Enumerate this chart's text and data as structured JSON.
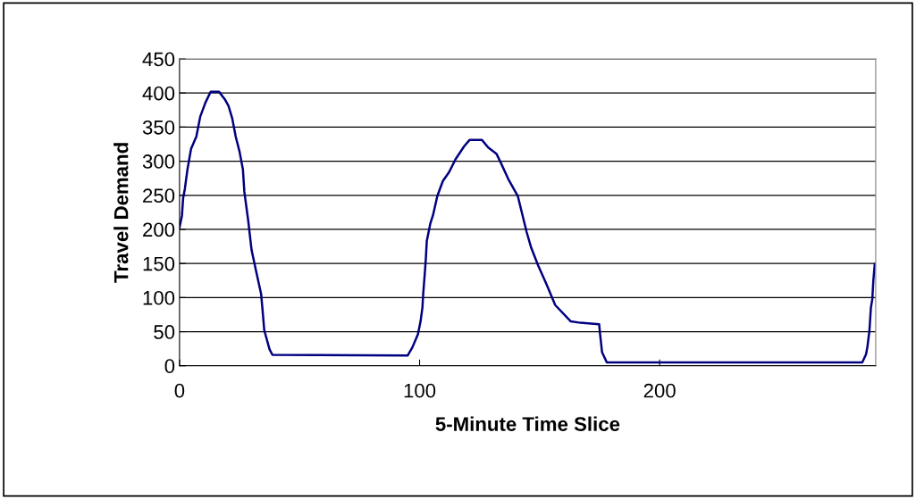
{
  "chart_data": {
    "type": "line",
    "xlabel": "5-Minute Time Slice",
    "ylabel": "Travel Demand",
    "xlim": [
      0,
      290
    ],
    "xticks": [
      0,
      100,
      200
    ],
    "ylim": [
      0,
      450
    ],
    "yticks": [
      0,
      50,
      100,
      150,
      200,
      250,
      300,
      350,
      400,
      450
    ],
    "grid": "y",
    "marker": "none",
    "line_style": "solid",
    "series": [
      {
        "color": "#000080",
        "x": [
          0,
          1,
          1.5,
          2.2,
          3.3,
          4.8,
          7,
          8.6,
          10.8,
          13,
          16.4,
          19,
          20.4,
          22,
          23.4,
          25,
          26.4,
          27,
          28.6,
          30,
          32,
          34,
          34.6,
          35.3,
          37.5,
          38.7,
          95,
          97,
          99.3,
          100.4,
          101.2,
          101.5,
          102.2,
          102.6,
          103,
          104.5,
          105.6,
          107.4,
          109.7,
          112.3,
          115,
          118.6,
          120.8,
          126,
          128.6,
          132,
          133.8,
          137.2,
          140.9,
          144.6,
          146.5,
          149.4,
          152.8,
          156.5,
          163,
          167,
          174.8,
          175.2,
          176,
          178,
          284.4,
          286,
          286.6,
          287.4,
          288,
          288.6,
          289,
          289.6
        ],
        "values": [
          203,
          220,
          246,
          259,
          288,
          318,
          336,
          365,
          386,
          402,
          402,
          390,
          381,
          362,
          336,
          314,
          288,
          255,
          213,
          170,
          137,
          105,
          81,
          52,
          24,
          16,
          15,
          27,
          46,
          65,
          86,
          105,
          137,
          157,
          183,
          209,
          221,
          249,
          271,
          284,
          303,
          322,
          331,
          331,
          320,
          311,
          298,
          272,
          249,
          196,
          173,
          147,
          120,
          89,
          65,
          63,
          61,
          46,
          20,
          5,
          5,
          17,
          29,
          52,
          85,
          98,
          124,
          149
        ]
      }
    ]
  }
}
